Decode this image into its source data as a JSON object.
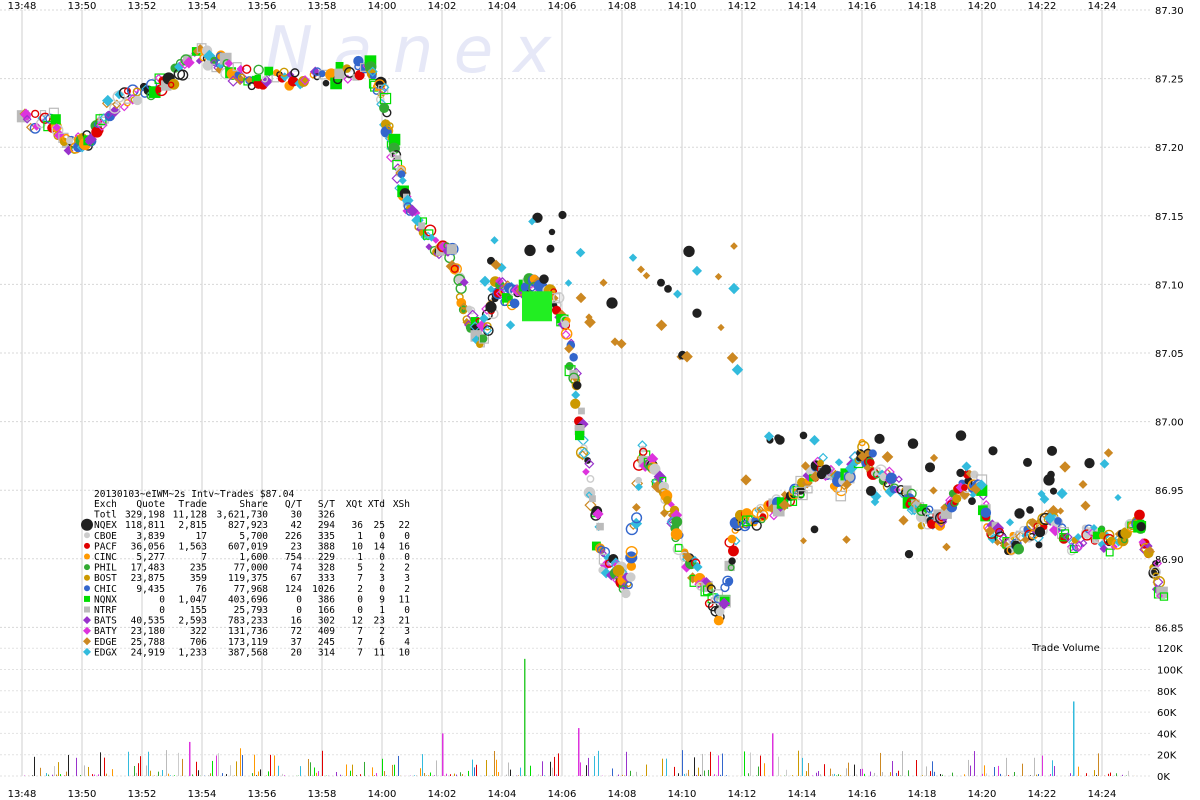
{
  "chart_data": {
    "type": "scatter",
    "title": "20130103~eIWM~2s Intv~Trades $87.04",
    "watermark": "Nanex",
    "x_ticks": [
      "13:48",
      "13:50",
      "13:52",
      "13:54",
      "13:56",
      "13:58",
      "14:00",
      "14:02",
      "14:04",
      "14:06",
      "14:08",
      "14:10",
      "14:12",
      "14:14",
      "14:16",
      "14:18",
      "14:20",
      "14:22",
      "14:24"
    ],
    "price_axis": {
      "ticks": [
        "87.30",
        "87.25",
        "87.20",
        "87.15",
        "87.10",
        "87.05",
        "87.00",
        "86.95",
        "86.90",
        "86.85"
      ],
      "range": [
        86.835,
        87.3
      ]
    },
    "volume_axis": {
      "label": "Trade Volume",
      "ticks": [
        "120K",
        "100K",
        "80K",
        "60K",
        "40K",
        "20K",
        "0K"
      ],
      "range": [
        0,
        120000
      ]
    },
    "price_path": [
      [
        "13:48:00",
        87.22
      ],
      [
        "13:49:00",
        87.22
      ],
      [
        "13:49:40",
        87.2
      ],
      [
        "13:50:20",
        87.21
      ],
      [
        "13:51:00",
        87.23
      ],
      [
        "13:52:00",
        87.24
      ],
      [
        "13:53:00",
        87.25
      ],
      [
        "13:54:00",
        87.27
      ],
      [
        "13:54:40",
        87.26
      ],
      [
        "13:55:30",
        87.25
      ],
      [
        "13:56:30",
        87.25
      ],
      [
        "13:58:00",
        87.25
      ],
      [
        "13:59:30",
        87.26
      ],
      [
        "14:00:00",
        87.24
      ],
      [
        "14:00:20",
        87.2
      ],
      [
        "14:00:40",
        87.17
      ],
      [
        "14:01:00",
        87.15
      ],
      [
        "14:01:40",
        87.13
      ],
      [
        "14:02:20",
        87.12
      ],
      [
        "14:02:50",
        87.08
      ],
      [
        "14:03:20",
        87.06
      ],
      [
        "14:03:50",
        87.1
      ],
      [
        "14:04:20",
        87.09
      ],
      [
        "14:05:00",
        87.1
      ],
      [
        "14:05:40",
        87.09
      ],
      [
        "14:06:10",
        87.07
      ],
      [
        "14:06:30",
        87.02
      ],
      [
        "14:06:50",
        86.96
      ],
      [
        "14:07:20",
        86.9
      ],
      [
        "14:07:50",
        86.89
      ],
      [
        "14:08:10",
        86.88
      ],
      [
        "14:08:40",
        86.98
      ],
      [
        "14:09:10",
        86.96
      ],
      [
        "14:09:40",
        86.93
      ],
      [
        "14:10:10",
        86.9
      ],
      [
        "14:10:50",
        86.88
      ],
      [
        "14:11:20",
        86.86
      ],
      [
        "14:11:50",
        86.93
      ],
      [
        "14:12:30",
        86.93
      ],
      [
        "14:13:20",
        86.94
      ],
      [
        "14:14:00",
        86.95
      ],
      [
        "14:14:40",
        86.97
      ],
      [
        "14:15:20",
        86.95
      ],
      [
        "14:16:00",
        86.98
      ],
      [
        "14:16:40",
        86.96
      ],
      [
        "14:17:20",
        86.95
      ],
      [
        "14:18:00",
        86.93
      ],
      [
        "14:18:40",
        86.93
      ],
      [
        "14:19:20",
        86.95
      ],
      [
        "14:19:50",
        86.96
      ],
      [
        "14:20:20",
        86.92
      ],
      [
        "14:21:00",
        86.91
      ],
      [
        "14:21:40",
        86.92
      ],
      [
        "14:22:20",
        86.93
      ],
      [
        "14:23:00",
        86.91
      ],
      [
        "14:23:40",
        86.92
      ],
      [
        "14:24:20",
        86.91
      ],
      [
        "14:25:10",
        86.93
      ],
      [
        "14:25:40",
        86.9
      ],
      [
        "14:26:00",
        86.87
      ]
    ],
    "legend": {
      "header": [
        "Exch",
        "Quote",
        "Trade",
        "Share",
        "Q/T",
        "S/T",
        "XQt",
        "XTd",
        "XSh"
      ],
      "rows": [
        {
          "exch": "Totl",
          "quote": "329,198",
          "trade": "11,128",
          "share": "3,621,730",
          "qt": "30",
          "st": "326",
          "xqt": "",
          "xtd": "",
          "xsh": "",
          "color": "#000000",
          "shape": "none"
        },
        {
          "exch": "NQEX",
          "quote": "118,811",
          "trade": "2,815",
          "share": "827,923",
          "qt": "42",
          "st": "294",
          "xqt": "36",
          "xtd": "25",
          "xsh": "22",
          "color": "#202020",
          "shape": "big-circle"
        },
        {
          "exch": "CBOE",
          "quote": "3,839",
          "trade": "17",
          "share": "5,700",
          "qt": "226",
          "st": "335",
          "xqt": "1",
          "xtd": "0",
          "xsh": "0",
          "color": "#cccccc",
          "shape": "circle"
        },
        {
          "exch": "PACF",
          "quote": "36,056",
          "trade": "1,563",
          "share": "607,019",
          "qt": "23",
          "st": "388",
          "xqt": "10",
          "xtd": "14",
          "xsh": "16",
          "color": "#e00000",
          "shape": "circle"
        },
        {
          "exch": "CINC",
          "quote": "5,277",
          "trade": "7",
          "share": "1,600",
          "qt": "754",
          "st": "229",
          "xqt": "1",
          "xtd": "0",
          "xsh": "0",
          "color": "#ff9900",
          "shape": "circle"
        },
        {
          "exch": "PHIL",
          "quote": "17,483",
          "trade": "235",
          "share": "77,000",
          "qt": "74",
          "st": "328",
          "xqt": "5",
          "xtd": "2",
          "xsh": "2",
          "color": "#33aa33",
          "shape": "circle"
        },
        {
          "exch": "BOST",
          "quote": "23,875",
          "trade": "359",
          "share": "119,375",
          "qt": "67",
          "st": "333",
          "xqt": "7",
          "xtd": "3",
          "xsh": "3",
          "color": "#cc9900",
          "shape": "circle"
        },
        {
          "exch": "CHIC",
          "quote": "9,435",
          "trade": "76",
          "share": "77,968",
          "qt": "124",
          "st": "1026",
          "xqt": "2",
          "xtd": "0",
          "xsh": "2",
          "color": "#3366cc",
          "shape": "circle"
        },
        {
          "exch": "NQNX",
          "quote": "0",
          "trade": "1,047",
          "share": "403,696",
          "qt": "0",
          "st": "386",
          "xqt": "0",
          "xtd": "9",
          "xsh": "11",
          "color": "#00dd00",
          "shape": "square"
        },
        {
          "exch": "NTRF",
          "quote": "0",
          "trade": "155",
          "share": "25,793",
          "qt": "0",
          "st": "166",
          "xqt": "0",
          "xtd": "1",
          "xsh": "0",
          "color": "#bbbbbb",
          "shape": "square"
        },
        {
          "exch": "BATS",
          "quote": "40,535",
          "trade": "2,593",
          "share": "783,233",
          "qt": "16",
          "st": "302",
          "xqt": "12",
          "xtd": "23",
          "xsh": "21",
          "color": "#9933cc",
          "shape": "diamond"
        },
        {
          "exch": "BATY",
          "quote": "23,180",
          "trade": "322",
          "share": "131,736",
          "qt": "72",
          "st": "409",
          "xqt": "7",
          "xtd": "2",
          "xsh": "3",
          "color": "#dd33dd",
          "shape": "diamond"
        },
        {
          "exch": "EDGE",
          "quote": "25,788",
          "trade": "706",
          "share": "173,119",
          "qt": "37",
          "st": "245",
          "xqt": "7",
          "xtd": "6",
          "xsh": "4",
          "color": "#cc8822",
          "shape": "diamond"
        },
        {
          "exch": "EDGX",
          "quote": "24,919",
          "trade": "1,233",
          "share": "387,568",
          "qt": "20",
          "st": "314",
          "xqt": "7",
          "xtd": "11",
          "xsh": "10",
          "color": "#33bbdd",
          "shape": "diamond"
        }
      ]
    },
    "grid": true,
    "legend_position": "bottom-left"
  }
}
